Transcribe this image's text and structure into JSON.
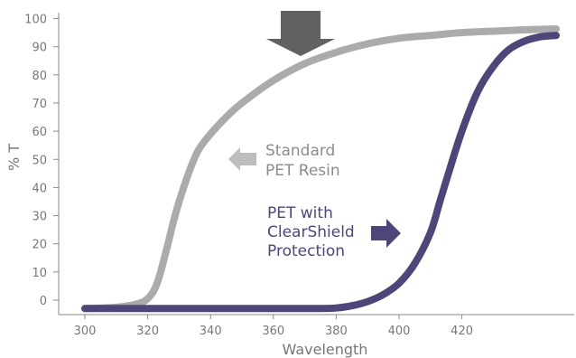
{
  "chart_data": {
    "type": "line",
    "title": "",
    "xlabel": "Wavelength",
    "ylabel": "% T",
    "xlim": [
      300,
      455
    ],
    "ylim": [
      -3,
      100
    ],
    "x_ticks": [
      "300",
      "320",
      "340",
      "360",
      "380",
      "400",
      "420"
    ],
    "y_ticks": [
      "0",
      "10",
      "20",
      "30",
      "40",
      "50",
      "60",
      "70",
      "80",
      "90",
      "100"
    ],
    "grid": false,
    "series": [
      {
        "name": "Standard PET Resin",
        "color": "#ababab",
        "x": [
          300,
          310,
          316,
          320,
          323,
          326,
          328,
          330,
          333,
          336,
          340,
          345,
          350,
          360,
          370,
          380,
          390,
          400,
          410,
          420,
          430,
          440,
          450
        ],
        "y": [
          -3,
          -2.5,
          -1.5,
          0.5,
          6,
          18,
          27,
          35,
          45,
          53,
          59,
          65,
          70,
          78,
          84,
          88,
          91,
          93,
          94,
          95,
          95.5,
          96,
          96.3
        ]
      },
      {
        "name": "PET with ClearShield Protection",
        "color": "#4e4679",
        "x": [
          300,
          320,
          340,
          360,
          375,
          380,
          385,
          390,
          395,
          400,
          405,
          410,
          413,
          416,
          420,
          425,
          430,
          435,
          440,
          445,
          450
        ],
        "y": [
          -3,
          -3,
          -3,
          -3,
          -3,
          -2.8,
          -2,
          -0.5,
          2,
          6,
          13,
          24,
          35,
          46,
          60,
          74,
          83,
          89,
          92,
          93.5,
          94
        ]
      }
    ],
    "annotations": [
      {
        "lines": [
          "Standard",
          "PET Resin"
        ],
        "color": "#8c8c8c",
        "arrow_color": "#bdbdbd",
        "arrow": "left"
      },
      {
        "lines": [
          "PET with",
          "ClearShield",
          "Protection"
        ],
        "color": "#4e4679",
        "arrow_color": "#4e4679",
        "arrow": "right"
      }
    ],
    "marker_arrow": {
      "color": "#616161",
      "direction": "down"
    }
  }
}
